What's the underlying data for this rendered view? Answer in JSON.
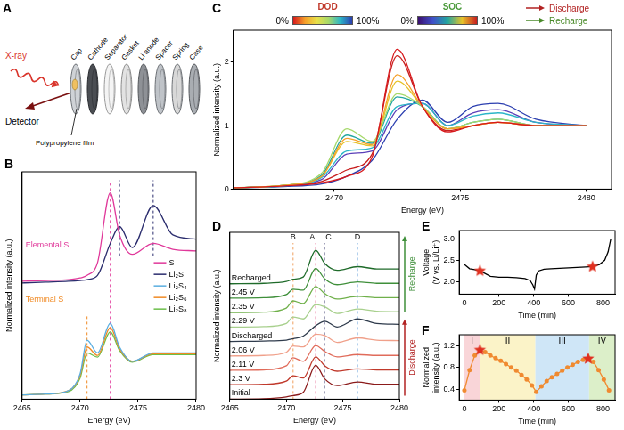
{
  "diagram": {
    "panel": "A",
    "source": "X-ray",
    "detector": "Detector",
    "parts": [
      "Cap",
      "Cathode",
      "Separator",
      "Gasket",
      "Li anode",
      "Spacer",
      "Spring",
      "Case"
    ],
    "film": "Polypropylene film"
  },
  "chart_data": [
    {
      "panel": "B",
      "type": "line",
      "x": [
        2465,
        2467,
        2469,
        2470,
        2470.6,
        2471.5,
        2472.6,
        2473.4,
        2474.5,
        2476.3,
        2478,
        2480
      ],
      "xlim": [
        2465,
        2480
      ],
      "xticks": [
        2465,
        2470,
        2475,
        2480
      ],
      "ylim": [
        0,
        2.7
      ],
      "tick_labels": "x",
      "x_label": "Energy (eV)",
      "y_label": "Normalized intensity (a.u.)",
      "legend": "right",
      "series": [
        {
          "name": "S",
          "color": "#e0389a",
          "values": [
            1.4,
            1.41,
            1.42,
            1.44,
            1.47,
            1.62,
            2.45,
            1.95,
            1.72,
            1.85,
            1.78,
            1.76
          ]
        },
        {
          "name": "Li₂S",
          "color": "#2b2d6e",
          "values": [
            1.38,
            1.39,
            1.4,
            1.41,
            1.42,
            1.47,
            1.85,
            2.05,
            1.8,
            2.3,
            1.95,
            1.9
          ]
        },
        {
          "name": "Li₂S₄",
          "color": "#5aaee0",
          "values": [
            0.05,
            0.06,
            0.1,
            0.3,
            0.7,
            0.55,
            0.9,
            0.62,
            0.45,
            0.55,
            0.55,
            0.55
          ]
        },
        {
          "name": "Li₂S₆",
          "color": "#f08a24",
          "values": [
            0.05,
            0.06,
            0.1,
            0.28,
            0.62,
            0.52,
            0.85,
            0.6,
            0.45,
            0.54,
            0.54,
            0.54
          ]
        },
        {
          "name": "Li₂S₈",
          "color": "#6cbf4a",
          "values": [
            0.05,
            0.06,
            0.09,
            0.25,
            0.55,
            0.5,
            0.8,
            0.58,
            0.44,
            0.53,
            0.53,
            0.53
          ]
        }
      ],
      "annotations": [
        {
          "text": "Elemental S",
          "color": "#e0389a"
        },
        {
          "text": "Terminal S",
          "color": "#f08a24"
        }
      ],
      "vlines": [
        {
          "x": 2470.6,
          "y": [
            0,
            1.0
          ],
          "color": "#f08a24",
          "line_style": "dashed"
        },
        {
          "x": 2472.6,
          "y": [
            0,
            2.6
          ],
          "color": "#e0389a",
          "line_style": "dashed"
        },
        {
          "x": 2473.4,
          "y": [
            1.7,
            2.6
          ],
          "color": "#2b2d6e",
          "line_style": "dashed"
        },
        {
          "x": 2476.3,
          "y": [
            1.7,
            2.6
          ],
          "color": "#2b2d6e",
          "line_style": "dashed"
        }
      ]
    },
    {
      "panel": "C",
      "type": "line",
      "x": [
        2466,
        2468,
        2469.5,
        2470.5,
        2471.5,
        2472.5,
        2473.5,
        2474.5,
        2475.5,
        2476.5,
        2478,
        2480
      ],
      "xlim": [
        2466,
        2481
      ],
      "xticks": [
        2470,
        2475,
        2480
      ],
      "ylim": [
        0,
        2.5
      ],
      "yticks": [
        0,
        1,
        2
      ],
      "x_label": "Energy (eV)",
      "y_label": "Normalized intensity (a.u.)",
      "series": [
        {
          "color": "#d7191c",
          "values": [
            0.02,
            0.05,
            0.1,
            0.2,
            0.5,
            2.2,
            1.3,
            0.9,
            1.0,
            1.05,
            1.0,
            1.0
          ]
        },
        {
          "color": "#f5a02a",
          "values": [
            0.02,
            0.06,
            0.2,
            0.8,
            0.7,
            1.8,
            1.3,
            0.95,
            1.0,
            1.05,
            1.0,
            1.0
          ]
        },
        {
          "color": "#a6d96a",
          "values": [
            0.02,
            0.06,
            0.25,
            0.95,
            0.75,
            1.5,
            1.3,
            0.95,
            1.05,
            1.1,
            1.0,
            1.0
          ]
        },
        {
          "color": "#2bb6c8",
          "values": [
            0.02,
            0.05,
            0.18,
            0.6,
            0.65,
            1.3,
            1.35,
            1.0,
            1.15,
            1.2,
            1.05,
            1.0
          ]
        },
        {
          "color": "#2c3fb0",
          "values": [
            0.02,
            0.04,
            0.08,
            0.2,
            0.45,
            1.1,
            1.4,
            1.05,
            1.3,
            1.35,
            1.1,
            1.0
          ]
        },
        {
          "color": "#5b3fb8",
          "values": [
            0.02,
            0.05,
            0.15,
            0.55,
            0.6,
            1.25,
            1.35,
            1.0,
            1.2,
            1.25,
            1.05,
            1.0
          ]
        },
        {
          "color": "#22a6a0",
          "values": [
            0.02,
            0.06,
            0.22,
            0.85,
            0.72,
            1.45,
            1.3,
            0.95,
            1.05,
            1.1,
            1.0,
            1.0
          ]
        },
        {
          "color": "#e6c229",
          "values": [
            0.02,
            0.06,
            0.2,
            0.75,
            0.68,
            1.7,
            1.3,
            0.95,
            1.0,
            1.05,
            1.0,
            1.0
          ]
        },
        {
          "color": "#c81e1e",
          "values": [
            0.02,
            0.05,
            0.12,
            0.3,
            0.55,
            2.1,
            1.3,
            0.92,
            1.0,
            1.05,
            1.0,
            1.0
          ]
        }
      ],
      "colorbars": [
        {
          "title": "DOD",
          "color": "#c0392b",
          "colors": [
            "#d7191c",
            "#f5a02a",
            "#e8e04a",
            "#a6d96a",
            "#2bb6c8",
            "#2c3fb0"
          ],
          "range": [
            0,
            100
          ],
          "ticks": [
            {
              "value": 0,
              "label": "0%"
            },
            {
              "value": 100,
              "label": "100%"
            }
          ]
        },
        {
          "title": "SOC",
          "color": "#4a9a3a",
          "colors": [
            "#3b0f70",
            "#3f4fc8",
            "#22a6a0",
            "#e6c229",
            "#c81e1e"
          ],
          "range": [
            0,
            100
          ],
          "ticks": [
            {
              "value": 0,
              "label": "0%"
            },
            {
              "value": 100,
              "label": "100%"
            }
          ]
        }
      ],
      "annotations": [
        {
          "text": "Discharge",
          "color": "#b22222"
        },
        {
          "text": "Recharge",
          "color": "#4a8a2a"
        }
      ]
    },
    {
      "panel": "D",
      "type": "line",
      "x": [
        2465,
        2468,
        2470,
        2470.6,
        2471.5,
        2472.6,
        2473.4,
        2474.5,
        2476.3,
        2478,
        2480
      ],
      "xlim": [
        2465,
        2480
      ],
      "xticks": [
        2465,
        2470,
        2475,
        2480
      ],
      "ylim": [
        0,
        3.7
      ],
      "tick_labels": "x",
      "x_label": "Energy (eV)",
      "y_label": "Normalized intensity (a.u.)",
      "series": [
        {
          "name": "Initial",
          "color": "#8b1a1a",
          "values": [
            0,
            0.01,
            0.05,
            0.08,
            0.15,
            0.75,
            0.45,
            0.3,
            0.38,
            0.33,
            0.33
          ]
        },
        {
          "name": "2.3 V",
          "color": "#c0392b",
          "values": [
            0.32,
            0.33,
            0.4,
            0.52,
            0.47,
            0.94,
            0.74,
            0.62,
            0.67,
            0.65,
            0.65
          ]
        },
        {
          "name": "2.11 V",
          "color": "#e06b5a",
          "values": [
            0.64,
            0.65,
            0.74,
            0.92,
            0.84,
            1.19,
            1.06,
            0.94,
            0.99,
            0.97,
            0.97
          ]
        },
        {
          "name": "2.06 V",
          "color": "#f0a08a",
          "values": [
            0.96,
            0.97,
            1.04,
            1.18,
            1.16,
            1.44,
            1.41,
            1.26,
            1.36,
            1.31,
            1.3
          ]
        },
        {
          "name": "Discharged",
          "color": "#2f3b4c",
          "values": [
            1.28,
            1.29,
            1.31,
            1.34,
            1.4,
            1.63,
            1.73,
            1.6,
            1.78,
            1.68,
            1.66
          ]
        },
        {
          "name": "2.29 V",
          "color": "#a8d08d",
          "values": [
            1.6,
            1.61,
            1.68,
            1.82,
            1.78,
            2.1,
            2.05,
            1.9,
            2.0,
            1.95,
            1.94
          ]
        },
        {
          "name": "2.35 V",
          "color": "#6fb04a",
          "values": [
            1.92,
            1.93,
            2.02,
            2.18,
            2.12,
            2.5,
            2.34,
            2.22,
            2.28,
            2.25,
            2.25
          ]
        },
        {
          "name": "2.45 V",
          "color": "#3f8f3a",
          "values": [
            2.24,
            2.25,
            2.32,
            2.44,
            2.42,
            2.9,
            2.67,
            2.54,
            2.6,
            2.57,
            2.57
          ]
        },
        {
          "name": "Recharged",
          "color": "#1f6b2a",
          "values": [
            2.56,
            2.57,
            2.61,
            2.66,
            2.71,
            3.3,
            3.01,
            2.86,
            2.94,
            2.89,
            2.89
          ]
        }
      ],
      "vlines": [
        {
          "label": "A",
          "x": 2472.6,
          "color": "#e05080",
          "line_style": "dashed"
        },
        {
          "label": "B",
          "x": 2470.6,
          "color": "#f0a060",
          "line_style": "dashed"
        },
        {
          "label": "C",
          "x": 2473.4,
          "color": "#8a8aa8",
          "line_style": "dashed"
        },
        {
          "label": "D",
          "x": 2476.3,
          "color": "#7fb0e0",
          "line_style": "dashed"
        }
      ],
      "annotations": [
        {
          "text": "Discharge",
          "color": "#b22222"
        },
        {
          "text": "Recharge",
          "color": "#3f8f3a"
        }
      ]
    },
    {
      "panel": "E",
      "type": "line",
      "x": [
        0,
        30,
        60,
        90,
        150,
        200,
        250,
        300,
        350,
        380,
        395,
        405,
        415,
        430,
        460,
        500,
        600,
        700,
        740,
        780,
        810,
        830,
        845
      ],
      "xlim": [
        -30,
        870
      ],
      "xticks": [
        0,
        200,
        400,
        600,
        800
      ],
      "ylim": [
        1.7,
        3.2
      ],
      "yticks": [
        {
          "value": 2,
          "label": "2.0"
        },
        {
          "value": 2.5,
          "label": "2.5"
        },
        {
          "value": 3,
          "label": "3.0"
        }
      ],
      "x_label": "Time (min)",
      "y_label": "Voltage (V vs. Li/Li⁺)",
      "series": [
        {
          "color": "#000000",
          "values": [
            2.4,
            2.3,
            2.28,
            2.25,
            2.12,
            2.1,
            2.1,
            2.09,
            2.07,
            2.02,
            1.92,
            1.82,
            2.15,
            2.25,
            2.29,
            2.3,
            2.32,
            2.34,
            2.35,
            2.4,
            2.5,
            2.7,
            3.0
          ]
        },
        {
          "type": "scatter",
          "marker": "star",
          "color": "#e03020",
          "x": [
            90,
            740
          ],
          "values": [
            2.25,
            2.35
          ]
        }
      ]
    },
    {
      "panel": "F",
      "type": "line",
      "x": [
        0,
        30,
        60,
        90,
        120,
        150,
        180,
        210,
        240,
        270,
        300,
        330,
        360,
        390,
        415,
        445,
        475,
        505,
        535,
        565,
        595,
        625,
        655,
        685,
        715,
        745,
        775,
        805,
        835
      ],
      "xlim": [
        -30,
        870
      ],
      "xticks": [
        0,
        200,
        400,
        600,
        800
      ],
      "ylim": [
        0.2,
        1.4
      ],
      "yticks": [
        0.4,
        0.8,
        1.2
      ],
      "x_label": "Time (min)",
      "y_label": "Normalized intensity (a.u.)",
      "series": [
        {
          "color": "#f08a30",
          "marker": "circle",
          "values": [
            0.38,
            0.75,
            1.02,
            1.12,
            1.08,
            1.02,
            0.97,
            0.92,
            0.86,
            0.8,
            0.74,
            0.66,
            0.58,
            0.47,
            0.35,
            0.45,
            0.55,
            0.62,
            0.68,
            0.74,
            0.8,
            0.85,
            0.9,
            0.94,
            0.96,
            0.9,
            0.75,
            0.58,
            0.38
          ]
        },
        {
          "type": "scatter",
          "marker": "star",
          "color": "#e03020",
          "x": [
            90,
            715
          ],
          "values": [
            1.12,
            0.96
          ]
        }
      ],
      "regions": [
        {
          "label": "I",
          "x": [
            0,
            90
          ],
          "color": "#f9d5d8"
        },
        {
          "label": "II",
          "x": [
            90,
            410
          ],
          "color": "#fbf3c8"
        },
        {
          "label": "III",
          "x": [
            410,
            720
          ],
          "color": "#cfe6f7"
        },
        {
          "label": "IV",
          "x": [
            720,
            870
          ],
          "color": "#dcefc9"
        }
      ]
    }
  ]
}
